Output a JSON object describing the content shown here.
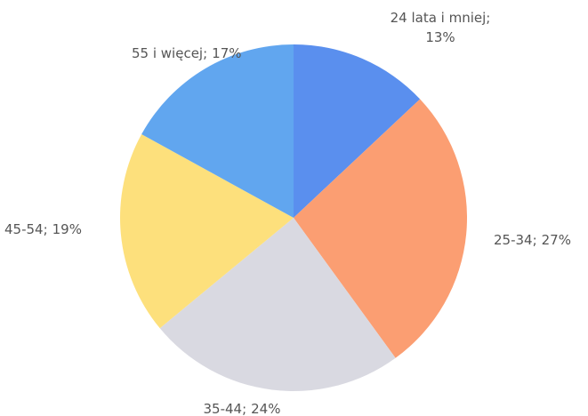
{
  "chart_data": {
    "type": "pie",
    "categories": [
      "24 lata i mniej;",
      "25-34;",
      "35-44;",
      "45-54;",
      "55 i więcej;"
    ],
    "values": [
      13,
      27,
      24,
      19,
      17
    ],
    "value_labels": [
      "13%",
      "27%",
      "24%",
      "19%",
      "17%"
    ],
    "colors": [
      "#5a8fee",
      "#fb9e72",
      "#d9d9e1",
      "#fde07c",
      "#61a6ef"
    ]
  }
}
